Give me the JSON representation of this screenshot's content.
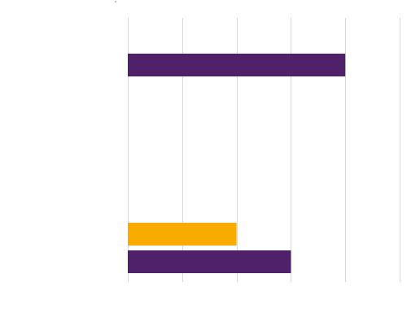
{
  "chart_data": {
    "type": "bar",
    "orientation": "horizontal",
    "title": "",
    "xlabel": "",
    "ylabel": "",
    "xlim": [
      0,
      5
    ],
    "grid": true,
    "gridlines_x": [
      0,
      1,
      2,
      3,
      4,
      5
    ],
    "categories": [
      "",
      ""
    ],
    "series": [
      {
        "color": "#4f216b",
        "values": [
          4,
          3
        ]
      },
      {
        "color": "#f9ab00",
        "values": [
          null,
          2
        ]
      }
    ],
    "legend": "none"
  }
}
